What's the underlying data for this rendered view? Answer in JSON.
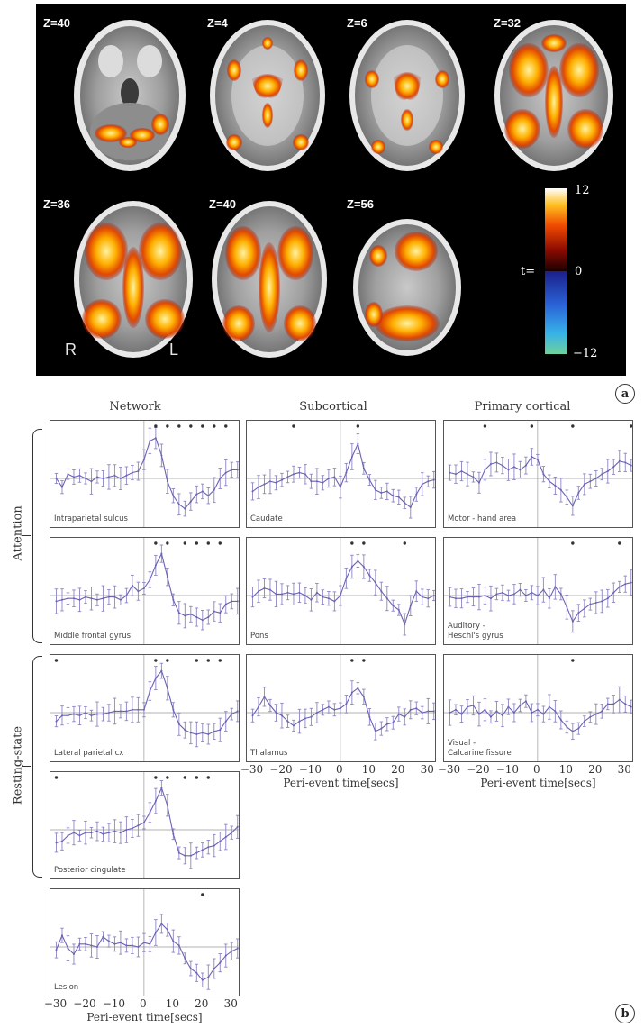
{
  "panel_a": {
    "slices": [
      {
        "label": "Z=40"
      },
      {
        "label": "Z=4"
      },
      {
        "label": "Z=6"
      },
      {
        "label": "Z=32"
      },
      {
        "label": "Z=36"
      },
      {
        "label": "Z=40"
      },
      {
        "label": "Z=56"
      }
    ],
    "left_right": {
      "left": "R",
      "right": "L"
    },
    "colorbar": {
      "prefix": "t=",
      "max": "12",
      "zero": "0",
      "min": "−12",
      "colors_hot": [
        "#1a0000",
        "#7a0000",
        "#e23b00",
        "#ff9a00",
        "#ffe84a",
        "#ffffff"
      ],
      "colors_cold": [
        "#1b1f8a",
        "#2a62d6",
        "#37b2e8",
        "#6fd19a"
      ]
    },
    "letter": "a"
  },
  "panel_b": {
    "letter": "b",
    "columns": [
      "Network",
      "Subcortical",
      "Primary cortical"
    ],
    "row_groups": [
      "Attention",
      "Resting-state"
    ],
    "x_ticks": [
      "−30",
      "−20",
      "−10",
      "0",
      "10",
      "20",
      "30"
    ],
    "x_label": "Peri-event time[secs]"
  },
  "chart_data": [
    {
      "type": "line",
      "title": "Intraparietal sulcus",
      "x": [
        -30,
        -28,
        -26,
        -24,
        -22,
        -20,
        -18,
        -16,
        -14,
        -12,
        -10,
        -8,
        -6,
        -4,
        -2,
        0,
        2,
        4,
        6,
        8,
        10,
        12,
        14,
        16,
        18,
        20,
        22,
        24,
        26,
        28,
        30,
        32
      ],
      "y": [
        0.0,
        -0.6,
        0.3,
        0.1,
        0.2,
        0.0,
        -0.2,
        0.1,
        0.0,
        0.1,
        0.2,
        0.0,
        0.2,
        0.4,
        0.5,
        1.3,
        2.6,
        2.8,
        1.6,
        -0.2,
        -1.2,
        -1.8,
        -2.1,
        -1.6,
        -1.1,
        -0.9,
        -1.2,
        -0.8,
        0.0,
        0.4,
        0.6,
        0.6
      ],
      "significant_x": [
        4,
        8,
        12,
        16,
        20,
        24,
        28
      ],
      "ylim": [
        -3,
        3.5
      ]
    },
    {
      "type": "line",
      "title": "Middle frontal gyrus",
      "x": [
        -30,
        -28,
        -26,
        -24,
        -22,
        -20,
        -18,
        -16,
        -14,
        -12,
        -10,
        -8,
        -6,
        -4,
        -2,
        0,
        2,
        4,
        6,
        8,
        10,
        12,
        14,
        16,
        18,
        20,
        22,
        24,
        26,
        28,
        30,
        32
      ],
      "y": [
        -0.4,
        -0.3,
        -0.2,
        -0.2,
        -0.3,
        -0.1,
        -0.2,
        -0.3,
        -0.2,
        -0.1,
        -0.1,
        -0.3,
        0.0,
        0.7,
        0.3,
        0.5,
        1.1,
        2.1,
        2.9,
        1.3,
        -0.3,
        -1.2,
        -1.4,
        -1.3,
        -1.5,
        -1.7,
        -1.5,
        -1.1,
        -1.2,
        -0.6,
        -0.4,
        -0.4
      ],
      "significant_x": [
        4,
        8,
        14,
        18,
        22,
        26
      ],
      "ylim": [
        -3,
        3.5
      ]
    },
    {
      "type": "line",
      "title": "Lateral parietal cx",
      "x": [
        -30,
        -28,
        -26,
        -24,
        -22,
        -20,
        -18,
        -16,
        -14,
        -12,
        -10,
        -8,
        -6,
        -4,
        -2,
        0,
        2,
        4,
        6,
        8,
        10,
        12,
        14,
        16,
        18,
        20,
        22,
        24,
        26,
        28,
        30,
        32
      ],
      "y": [
        -0.6,
        -0.2,
        -0.2,
        -0.1,
        -0.2,
        0.0,
        -0.2,
        -0.1,
        -0.1,
        0.0,
        0.1,
        0.1,
        0.1,
        0.2,
        0.2,
        0.2,
        1.5,
        2.4,
        2.9,
        1.7,
        0.2,
        -0.8,
        -1.2,
        -1.4,
        -1.5,
        -1.4,
        -1.5,
        -1.3,
        -1.2,
        -0.6,
        -0.1,
        0.1
      ],
      "significant_x": [
        -30,
        4,
        8,
        18,
        22,
        26
      ],
      "ylim": [
        -3,
        3.5
      ]
    },
    {
      "type": "line",
      "title": "Posterior cingulate",
      "x": [
        -30,
        -28,
        -26,
        -24,
        -22,
        -20,
        -18,
        -16,
        -14,
        -12,
        -10,
        -8,
        -6,
        -4,
        -2,
        0,
        2,
        4,
        6,
        8,
        10,
        12,
        14,
        16,
        18,
        20,
        22,
        24,
        26,
        28,
        30,
        32
      ],
      "y": [
        -0.9,
        -0.8,
        -0.4,
        -0.2,
        -0.4,
        -0.2,
        -0.2,
        -0.1,
        -0.3,
        -0.2,
        -0.1,
        -0.2,
        0.0,
        0.1,
        0.3,
        0.5,
        1.2,
        2.0,
        2.9,
        1.7,
        -0.3,
        -1.6,
        -1.8,
        -1.8,
        -1.6,
        -1.4,
        -1.2,
        -1.1,
        -0.8,
        -0.5,
        -0.2,
        0.2
      ],
      "significant_x": [
        -30,
        4,
        8,
        14,
        18,
        22
      ],
      "ylim": [
        -3,
        3.5
      ]
    },
    {
      "type": "line",
      "title": "Lesion",
      "x": [
        -30,
        -28,
        -26,
        -24,
        -22,
        -20,
        -18,
        -16,
        -14,
        -12,
        -10,
        -8,
        -6,
        -4,
        -2,
        0,
        2,
        4,
        6,
        8,
        10,
        12,
        14,
        16,
        18,
        20,
        22,
        24,
        26,
        28,
        30,
        32
      ],
      "y": [
        -0.2,
        0.8,
        -0.1,
        -0.5,
        0.2,
        0.2,
        0.1,
        0.0,
        0.7,
        0.4,
        0.2,
        0.3,
        0.1,
        0.1,
        0.0,
        0.3,
        0.2,
        1.0,
        1.6,
        1.2,
        0.4,
        0.1,
        -0.8,
        -1.5,
        -1.8,
        -2.3,
        -2.1,
        -1.5,
        -1.1,
        -0.6,
        -0.3,
        -0.1
      ],
      "significant_x": [
        20
      ],
      "ylim": [
        -3,
        3.5
      ]
    },
    {
      "type": "line",
      "title": "Caudate",
      "x": [
        -30,
        -28,
        -26,
        -24,
        -22,
        -20,
        -18,
        -16,
        -14,
        -12,
        -10,
        -8,
        -6,
        -4,
        -2,
        0,
        2,
        4,
        6,
        8,
        10,
        12,
        14,
        16,
        18,
        20,
        22,
        24,
        26,
        28,
        30,
        32
      ],
      "y": [
        -0.9,
        -0.6,
        -0.4,
        -0.2,
        -0.3,
        -0.1,
        0.1,
        0.3,
        0.4,
        0.3,
        -0.2,
        -0.2,
        -0.3,
        0.0,
        0.1,
        -0.6,
        0.4,
        1.5,
        2.4,
        0.7,
        -0.1,
        -0.8,
        -1.0,
        -0.9,
        -1.2,
        -1.3,
        -1.7,
        -2.0,
        -1.1,
        -0.4,
        -0.2,
        -0.1
      ],
      "significant_x": [
        -16,
        6
      ],
      "ylim": [
        -3,
        3.5
      ]
    },
    {
      "type": "line",
      "title": "Pons",
      "x": [
        -30,
        -28,
        -26,
        -24,
        -22,
        -20,
        -18,
        -16,
        -14,
        -12,
        -10,
        -8,
        -6,
        -4,
        -2,
        0,
        2,
        4,
        6,
        8,
        10,
        12,
        14,
        16,
        18,
        20,
        22,
        24,
        26,
        28,
        30,
        32
      ],
      "y": [
        -0.1,
        0.3,
        0.5,
        0.4,
        0.1,
        0.1,
        0.2,
        0.1,
        0.2,
        0.0,
        -0.3,
        0.2,
        -0.1,
        -0.2,
        -0.4,
        0.0,
        1.2,
        2.0,
        2.4,
        2.0,
        1.4,
        0.9,
        0.3,
        -0.2,
        -0.7,
        -1.0,
        -2.0,
        -0.7,
        0.3,
        -0.1,
        -0.2,
        0.0
      ],
      "significant_x": [
        4,
        8,
        22
      ],
      "ylim": [
        -3,
        3.5
      ]
    },
    {
      "type": "line",
      "title": "Thalamus",
      "x": [
        -30,
        -28,
        -26,
        -24,
        -22,
        -20,
        -18,
        -16,
        -14,
        -12,
        -10,
        -8,
        -6,
        -4,
        -2,
        0,
        2,
        4,
        6,
        8,
        10,
        12,
        14,
        16,
        18,
        20,
        22,
        24,
        26,
        28,
        30,
        32
      ],
      "y": [
        -0.2,
        0.4,
        1.1,
        0.5,
        0.0,
        -0.2,
        -0.6,
        -0.9,
        -0.6,
        -0.4,
        -0.3,
        0.0,
        0.2,
        0.4,
        0.2,
        0.3,
        0.6,
        1.4,
        1.7,
        1.1,
        -0.3,
        -1.3,
        -1.1,
        -0.8,
        -0.7,
        -0.1,
        -0.3,
        0.2,
        0.3,
        0.0,
        0.1,
        0.1
      ],
      "significant_x": [
        4,
        8
      ],
      "ylim": [
        -3,
        3.5
      ]
    },
    {
      "type": "line",
      "title": "Motor - hand area",
      "x": [
        -30,
        -28,
        -26,
        -24,
        -22,
        -20,
        -18,
        -16,
        -14,
        -12,
        -10,
        -8,
        -6,
        -4,
        -2,
        0,
        2,
        4,
        6,
        8,
        10,
        12,
        14,
        16,
        18,
        20,
        22,
        24,
        26,
        28,
        30,
        32
      ],
      "y": [
        0.4,
        0.3,
        0.5,
        0.3,
        0.1,
        -0.3,
        0.6,
        1.0,
        1.1,
        0.9,
        0.6,
        0.8,
        0.6,
        0.9,
        1.5,
        1.3,
        0.3,
        -0.2,
        -0.5,
        -0.8,
        -1.3,
        -1.9,
        -1.0,
        -0.4,
        -0.2,
        0.0,
        0.3,
        0.5,
        0.8,
        1.2,
        1.1,
        0.9
      ],
      "significant_x": [
        -18,
        -2,
        12,
        32
      ],
      "ylim": [
        -3,
        3.5
      ]
    },
    {
      "type": "line",
      "title": "Auditory - Heschl's gyrus",
      "x": [
        -30,
        -28,
        -26,
        -24,
        -22,
        -20,
        -18,
        -16,
        -14,
        -12,
        -10,
        -8,
        -6,
        -4,
        -2,
        0,
        2,
        4,
        6,
        8,
        10,
        12,
        14,
        16,
        18,
        20,
        22,
        24,
        26,
        28,
        30,
        32
      ],
      "y": [
        -0.1,
        -0.2,
        -0.2,
        -0.1,
        -0.1,
        -0.1,
        0.0,
        -0.2,
        0.1,
        0.2,
        0.0,
        0.1,
        0.4,
        0.0,
        0.2,
        0.0,
        0.4,
        -0.2,
        0.6,
        0.1,
        -0.8,
        -1.8,
        -1.2,
        -0.9,
        -0.6,
        -0.5,
        -0.4,
        -0.2,
        0.2,
        0.6,
        0.8,
        0.9
      ],
      "significant_x": [
        12,
        28
      ],
      "ylim": [
        -3,
        3.5
      ]
    },
    {
      "type": "line",
      "title": "Visual - Calcarine fissure",
      "x": [
        -30,
        -28,
        -26,
        -24,
        -22,
        -20,
        -18,
        -16,
        -14,
        -12,
        -10,
        -8,
        -6,
        -4,
        -2,
        0,
        2,
        4,
        6,
        8,
        10,
        12,
        14,
        16,
        18,
        20,
        22,
        24,
        26,
        28,
        30,
        32
      ],
      "y": [
        0.0,
        0.2,
        -0.1,
        0.4,
        0.5,
        -0.1,
        0.2,
        -0.3,
        0.1,
        -0.2,
        0.4,
        0.0,
        0.5,
        0.8,
        0.0,
        0.2,
        -0.1,
        0.4,
        0.1,
        -0.5,
        -1.0,
        -1.3,
        -1.1,
        -0.6,
        -0.3,
        -0.1,
        0.1,
        0.6,
        0.6,
        0.9,
        0.6,
        0.4
      ],
      "significant_x": [
        12
      ],
      "ylim": [
        -3,
        3.5
      ]
    }
  ]
}
